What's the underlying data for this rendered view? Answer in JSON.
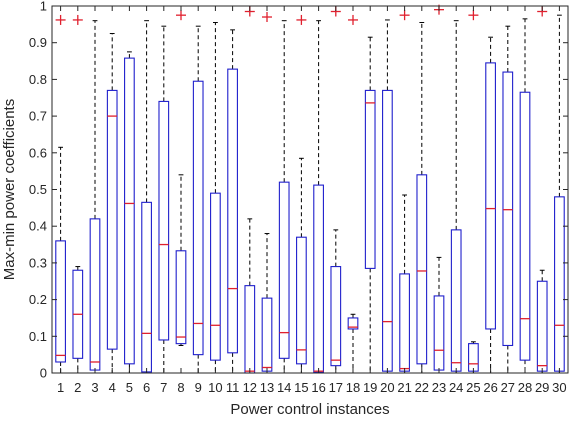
{
  "chart_data": {
    "type": "boxplot",
    "xlabel": "Power control instances",
    "ylabel": "Max-min power coefficients",
    "ylim": [
      0,
      1
    ],
    "yticks": [
      "0",
      "0.1",
      "0.2",
      "0.3",
      "0.4",
      "0.5",
      "0.6",
      "0.7",
      "0.8",
      "0.9",
      "1"
    ],
    "categories": [
      "1",
      "2",
      "3",
      "4",
      "5",
      "6",
      "7",
      "8",
      "9",
      "10",
      "11",
      "12",
      "13",
      "14",
      "15",
      "16",
      "17",
      "18",
      "19",
      "20",
      "21",
      "22",
      "23",
      "24",
      "25",
      "26",
      "27",
      "28",
      "29",
      "30"
    ],
    "grid": false,
    "colors": {
      "box": "#1f1fcc",
      "median": "#e0202e",
      "whisker": "#000000",
      "outlier": "#e0202e"
    },
    "boxes": [
      {
        "whisker_low": 0.0,
        "q1": 0.03,
        "median": 0.048,
        "q3": 0.36,
        "whisker_high": 0.615,
        "outliers": [
          0.962
        ]
      },
      {
        "whisker_low": 0.0,
        "q1": 0.04,
        "median": 0.16,
        "q3": 0.28,
        "whisker_high": 0.29,
        "outliers": [
          0.962
        ]
      },
      {
        "whisker_low": 0.0,
        "q1": 0.008,
        "median": 0.03,
        "q3": 0.42,
        "whisker_high": 0.96,
        "outliers": []
      },
      {
        "whisker_low": 0.0,
        "q1": 0.065,
        "median": 0.7,
        "q3": 0.77,
        "whisker_high": 0.925,
        "outliers": []
      },
      {
        "whisker_low": 0.0,
        "q1": 0.025,
        "median": 0.462,
        "q3": 0.858,
        "whisker_high": 0.875,
        "outliers": []
      },
      {
        "whisker_low": 0.0,
        "q1": 0.003,
        "median": 0.108,
        "q3": 0.465,
        "whisker_high": 0.96,
        "outliers": []
      },
      {
        "whisker_low": 0.0,
        "q1": 0.09,
        "median": 0.35,
        "q3": 0.74,
        "whisker_high": 0.945,
        "outliers": []
      },
      {
        "whisker_low": 0.075,
        "q1": 0.08,
        "median": 0.098,
        "q3": 0.333,
        "whisker_high": 0.54,
        "outliers": [
          0.975
        ]
      },
      {
        "whisker_low": 0.0,
        "q1": 0.05,
        "median": 0.135,
        "q3": 0.795,
        "whisker_high": 0.945,
        "outliers": []
      },
      {
        "whisker_low": 0.0,
        "q1": 0.035,
        "median": 0.13,
        "q3": 0.49,
        "whisker_high": 0.955,
        "outliers": []
      },
      {
        "whisker_low": 0.0,
        "q1": 0.055,
        "median": 0.23,
        "q3": 0.828,
        "whisker_high": 0.935,
        "outliers": []
      },
      {
        "whisker_low": 0.0,
        "q1": 0.0,
        "median": 0.005,
        "q3": 0.238,
        "whisker_high": 0.42,
        "outliers": [
          0.985
        ]
      },
      {
        "whisker_low": 0.0,
        "q1": 0.005,
        "median": 0.015,
        "q3": 0.204,
        "whisker_high": 0.38,
        "outliers": [
          0.97
        ]
      },
      {
        "whisker_low": 0.0,
        "q1": 0.04,
        "median": 0.11,
        "q3": 0.52,
        "whisker_high": 0.96,
        "outliers": []
      },
      {
        "whisker_low": 0.0,
        "q1": 0.025,
        "median": 0.063,
        "q3": 0.37,
        "whisker_high": 0.585,
        "outliers": [
          0.962
        ]
      },
      {
        "whisker_low": 0.0,
        "q1": 0.002,
        "median": 0.005,
        "q3": 0.512,
        "whisker_high": 0.96,
        "outliers": []
      },
      {
        "whisker_low": 0.0,
        "q1": 0.02,
        "median": 0.035,
        "q3": 0.29,
        "whisker_high": 0.39,
        "outliers": [
          0.985
        ]
      },
      {
        "whisker_low": 0.0,
        "q1": 0.12,
        "median": 0.125,
        "q3": 0.15,
        "whisker_high": 0.16,
        "outliers": [
          0.962
        ]
      },
      {
        "whisker_low": 0.0,
        "q1": 0.285,
        "median": 0.736,
        "q3": 0.77,
        "whisker_high": 0.915,
        "outliers": []
      },
      {
        "whisker_low": 0.0,
        "q1": 0.005,
        "median": 0.14,
        "q3": 0.77,
        "whisker_high": 0.962,
        "outliers": []
      },
      {
        "whisker_low": 0.0,
        "q1": 0.005,
        "median": 0.012,
        "q3": 0.27,
        "whisker_high": 0.485,
        "outliers": [
          0.975
        ]
      },
      {
        "whisker_low": 0.0,
        "q1": 0.025,
        "median": 0.278,
        "q3": 0.54,
        "whisker_high": 0.955,
        "outliers": []
      },
      {
        "whisker_low": 0.0,
        "q1": 0.008,
        "median": 0.062,
        "q3": 0.21,
        "whisker_high": 0.315,
        "outliers": [
          0.99
        ]
      },
      {
        "whisker_low": 0.0,
        "q1": 0.005,
        "median": 0.028,
        "q3": 0.39,
        "whisker_high": 0.96,
        "outliers": []
      },
      {
        "whisker_low": 0.0,
        "q1": 0.005,
        "median": 0.025,
        "q3": 0.08,
        "whisker_high": 0.085,
        "outliers": [
          0.975
        ]
      },
      {
        "whisker_low": 0.0,
        "q1": 0.12,
        "median": 0.448,
        "q3": 0.845,
        "whisker_high": 0.915,
        "outliers": []
      },
      {
        "whisker_low": 0.0,
        "q1": 0.075,
        "median": 0.445,
        "q3": 0.82,
        "whisker_high": 0.945,
        "outliers": []
      },
      {
        "whisker_low": 0.0,
        "q1": 0.035,
        "median": 0.148,
        "q3": 0.765,
        "whisker_high": 0.965,
        "outliers": []
      },
      {
        "whisker_low": 0.0,
        "q1": 0.005,
        "median": 0.02,
        "q3": 0.25,
        "whisker_high": 0.28,
        "outliers": [
          0.985
        ]
      },
      {
        "whisker_low": 0.0,
        "q1": 0.005,
        "median": 0.13,
        "q3": 0.48,
        "whisker_high": 0.975,
        "outliers": []
      }
    ]
  }
}
